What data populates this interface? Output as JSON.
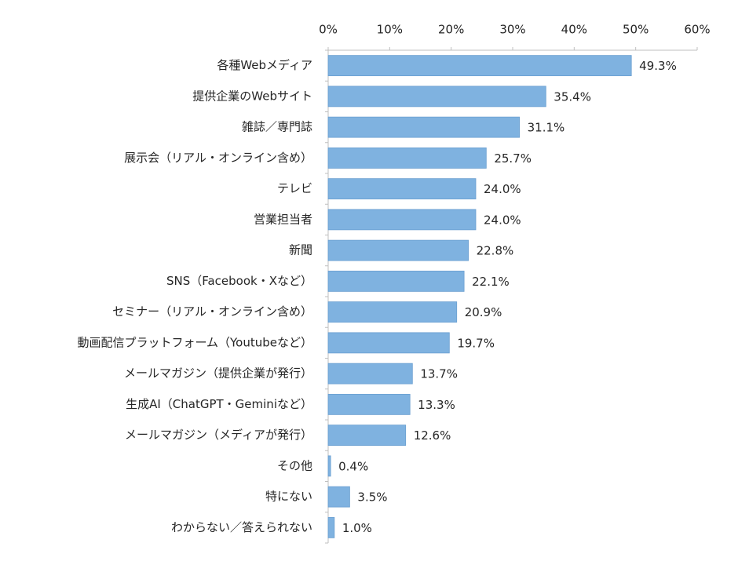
{
  "chart_data": {
    "type": "hbar",
    "categories": [
      "各種Webメディア",
      "提供企業のWebサイト",
      "雑誌／専門誌",
      "展示会（リアル・オンライン含め）",
      "テレビ",
      "営業担当者",
      "新聞",
      "SNS（Facebook・Xなど）",
      "セミナー（リアル・オンライン含め）",
      "動画配信プラットフォーム（Youtubeなど）",
      "メールマガジン（提供企業が発行）",
      "生成AI（ChatGPT・Geminiなど）",
      "メールマガジン（メディアが発行）",
      "その他",
      "特にない",
      "わからない／答えられない"
    ],
    "values": [
      49.3,
      35.4,
      31.1,
      25.7,
      24.0,
      24.0,
      22.8,
      22.1,
      20.9,
      19.7,
      13.7,
      13.3,
      12.6,
      0.4,
      3.5,
      1.0
    ],
    "value_labels": [
      "49.3%",
      "35.4%",
      "31.1%",
      "25.7%",
      "24.0%",
      "24.0%",
      "22.8%",
      "22.1%",
      "20.9%",
      "19.7%",
      "13.7%",
      "13.3%",
      "12.6%",
      "0.4%",
      "3.5%",
      "1.0%"
    ],
    "color": "#7fb2e0",
    "xlim": [
      0,
      60
    ],
    "xticks": [
      {
        "value": 0,
        "label": "0%"
      },
      {
        "value": 10,
        "label": "10%"
      },
      {
        "value": 20,
        "label": "20%"
      },
      {
        "value": 30,
        "label": "30%"
      },
      {
        "value": 40,
        "label": "40%"
      },
      {
        "value": 50,
        "label": "50%"
      },
      {
        "value": 60,
        "label": "60%"
      }
    ]
  }
}
